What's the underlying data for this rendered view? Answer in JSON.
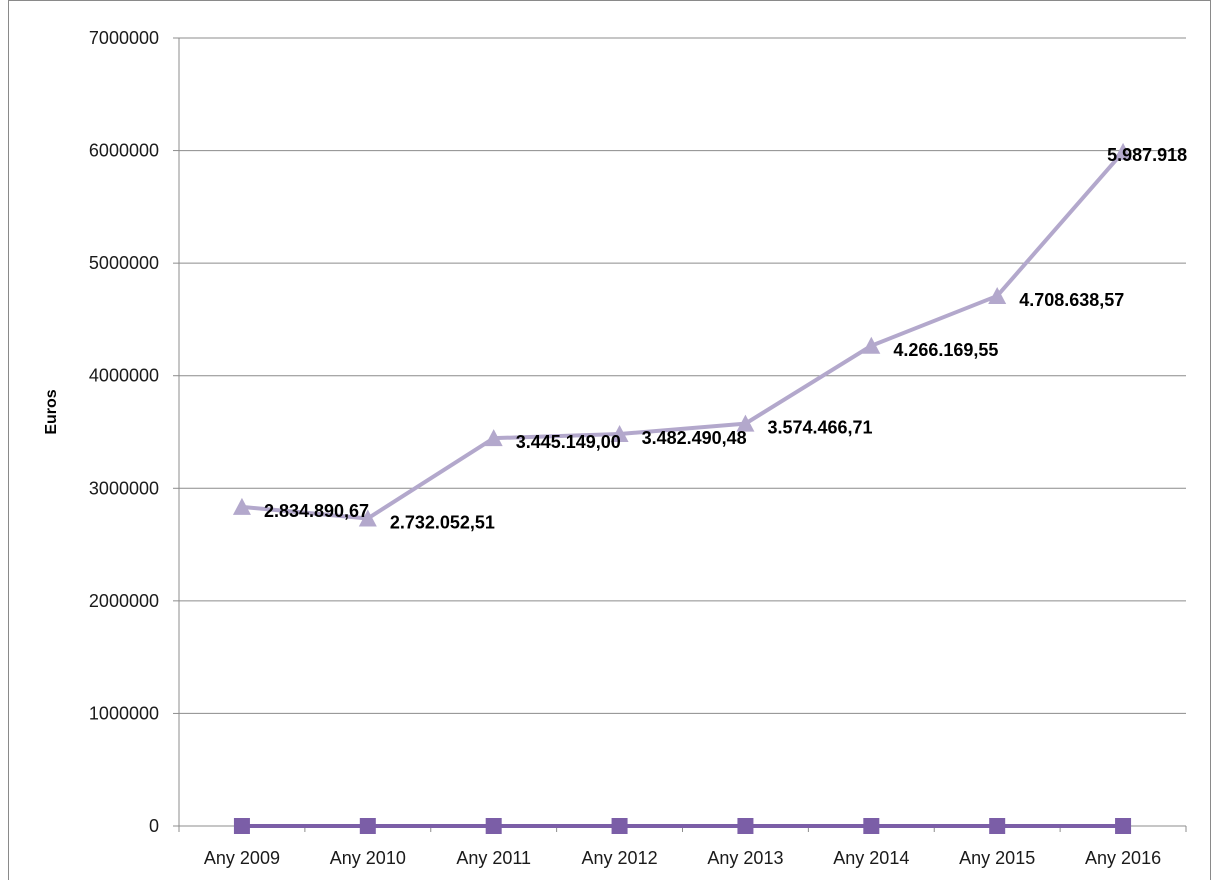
{
  "chart_data": {
    "type": "line",
    "title": "",
    "xlabel": "",
    "ylabel": "Euros",
    "ylim": [
      0,
      7000000
    ],
    "yticks": [
      "0",
      "1000000",
      "2000000",
      "3000000",
      "4000000",
      "5000000",
      "6000000",
      "7000000"
    ],
    "categories": [
      "Any 2009",
      "Any 2010",
      "Any 2011",
      "Any 2012",
      "Any 2013",
      "Any 2014",
      "Any 2015",
      "Any 2016"
    ],
    "grid": true,
    "legend": "none",
    "series": [
      {
        "marker": "triangle",
        "color": "#b3a8cc",
        "values": [
          2834890.67,
          2732052.51,
          3445149.0,
          3482490.48,
          3574466.71,
          4266169.55,
          4708638.57,
          5987918
        ],
        "data_labels": [
          "2.834.890,67",
          "2.732.052,51",
          "3.445.149,00",
          "3.482.490,48",
          "3.574.466,71",
          "4.266.169,55",
          "4.708.638,57",
          "5.987.918"
        ]
      },
      {
        "marker": "square",
        "color": "#7b5ea7",
        "values": [
          0,
          0,
          0,
          0,
          0,
          0,
          0,
          0
        ]
      }
    ]
  }
}
